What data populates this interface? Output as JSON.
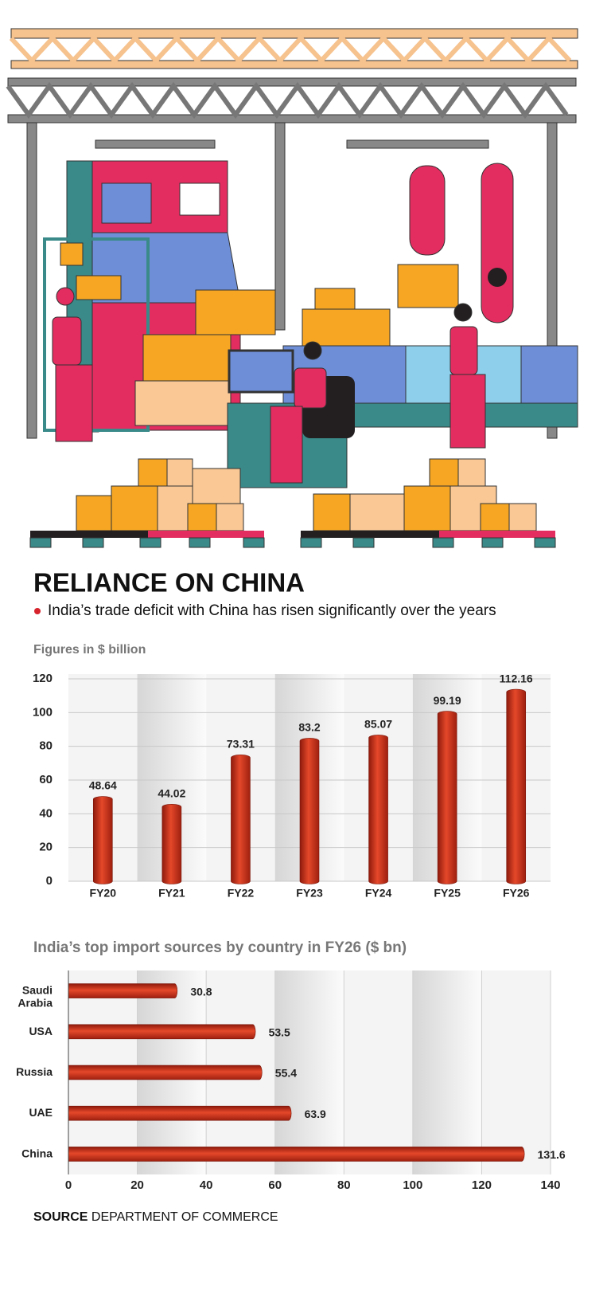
{
  "header": {
    "title": "RELIANCE ON CHINA",
    "subtitle": "India’s trade deficit with China has risen significantly over the years"
  },
  "chart_data": [
    {
      "type": "bar",
      "subtitle": "Figures in $ billion",
      "categories": [
        "FY20",
        "FY21",
        "FY22",
        "FY23",
        "FY24",
        "FY25",
        "FY26"
      ],
      "values": [
        48.64,
        44.02,
        73.31,
        83.2,
        85.07,
        99.19,
        112.16
      ],
      "color": "#e5482a",
      "ylim": [
        0,
        120
      ],
      "yticks": [
        0,
        20,
        40,
        60,
        80,
        100,
        120
      ],
      "grid": true
    },
    {
      "type": "barh",
      "title": "India’s top import sources by country in FY26 ($ bn)",
      "categories": [
        "Saudi Arabia",
        "USA",
        "Russia",
        "UAE",
        "China"
      ],
      "values": [
        30.8,
        53.5,
        55.4,
        63.9,
        131.6
      ],
      "color": "#e5482a",
      "xlim": [
        0,
        140
      ],
      "xticks": [
        0,
        20,
        40,
        60,
        80,
        100,
        120,
        140
      ],
      "grid": true
    }
  ],
  "source": {
    "label": "SOURCE",
    "text": "DEPARTMENT OF COMMERCE"
  }
}
